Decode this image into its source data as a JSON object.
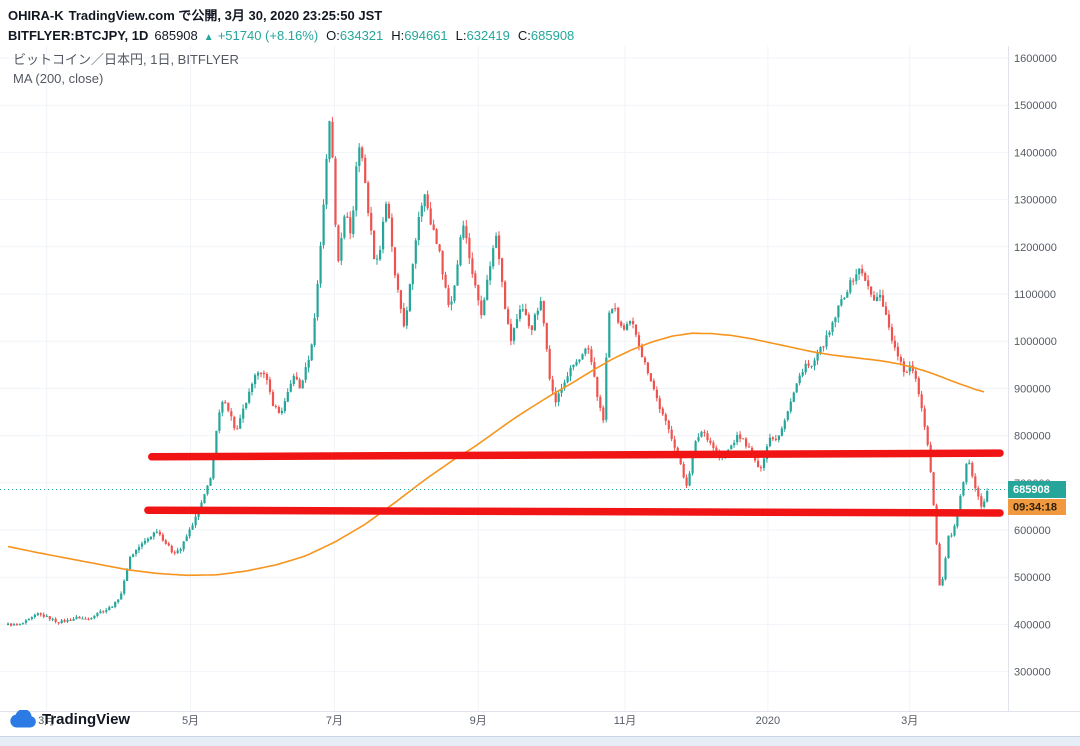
{
  "header": {
    "author": "OHIRA-K",
    "publish_info": "TradingView.com で公開, 3月 30, 2020 23:25:50 JST",
    "symbol": "BITFLYER:BTCJPY, 1D",
    "last": "685908",
    "arrow": "▲",
    "change": "+51740 (+8.16%)",
    "o_label": "O:",
    "o_value": "634321",
    "h_label": "H:",
    "h_value": "694661",
    "l_label": "L:",
    "l_value": "632419",
    "c_label": "C:",
    "c_value": "685908"
  },
  "legend": {
    "title": "ビットコイン／日本円, 1日, BITFLYER",
    "ma": "MA (200, close)"
  },
  "footer": {
    "brand": "TradingView"
  },
  "chart_data": {
    "type": "candlestick",
    "title": "ビットコイン／日本円 1日 BITFLYER",
    "symbol": "BITFLYER:BTCJPY",
    "interval": "1D",
    "legend_indicator": "MA (200, close)",
    "y_axis": {
      "min": 220000,
      "max": 1625000,
      "ticks": [
        300000,
        400000,
        500000,
        600000,
        700000,
        800000,
        900000,
        1000000,
        1100000,
        1200000,
        1300000,
        1400000,
        1500000,
        1600000
      ]
    },
    "x_ticks": [
      {
        "label": "3月",
        "t": 0.039
      },
      {
        "label": "5月",
        "t": 0.184
      },
      {
        "label": "7月",
        "t": 0.329
      },
      {
        "label": "9月",
        "t": 0.474
      },
      {
        "label": "11月",
        "t": 0.622
      },
      {
        "label": "2020",
        "t": 0.766
      },
      {
        "label": "3月",
        "t": 0.909
      }
    ],
    "ohlc": {
      "open": 634321,
      "high": 694661,
      "low": 632419,
      "close": 685908,
      "change": 51740,
      "change_pct": 8.16
    },
    "price_line": {
      "value": 685908,
      "label": "685908",
      "countdown": "09:34:18"
    },
    "red_lines": [
      {
        "t1": 0.145,
        "v1": 755000,
        "t2": 1.0,
        "v2": 763000
      },
      {
        "t1": 0.141,
        "v1": 642000,
        "t2": 1.0,
        "v2": 636000
      }
    ],
    "num_candles": 330,
    "close_anchors": [
      [
        0.0,
        400000
      ],
      [
        0.01,
        398000
      ],
      [
        0.02,
        408000
      ],
      [
        0.03,
        422000
      ],
      [
        0.04,
        415000
      ],
      [
        0.05,
        405000
      ],
      [
        0.06,
        408000
      ],
      [
        0.07,
        415000
      ],
      [
        0.08,
        410000
      ],
      [
        0.09,
        425000
      ],
      [
        0.1,
        432000
      ],
      [
        0.108,
        445000
      ],
      [
        0.115,
        470000
      ],
      [
        0.122,
        540000
      ],
      [
        0.13,
        560000
      ],
      [
        0.14,
        580000
      ],
      [
        0.15,
        600000
      ],
      [
        0.158,
        575000
      ],
      [
        0.166,
        552000
      ],
      [
        0.174,
        560000
      ],
      [
        0.182,
        595000
      ],
      [
        0.19,
        630000
      ],
      [
        0.198,
        672000
      ],
      [
        0.205,
        720000
      ],
      [
        0.212,
        840000
      ],
      [
        0.218,
        880000
      ],
      [
        0.224,
        845000
      ],
      [
        0.23,
        805000
      ],
      [
        0.238,
        860000
      ],
      [
        0.246,
        905000
      ],
      [
        0.253,
        945000
      ],
      [
        0.26,
        920000
      ],
      [
        0.267,
        868000
      ],
      [
        0.274,
        845000
      ],
      [
        0.281,
        880000
      ],
      [
        0.288,
        930000
      ],
      [
        0.294,
        900000
      ],
      [
        0.3,
        940000
      ],
      [
        0.306,
        990000
      ],
      [
        0.312,
        1120000
      ],
      [
        0.317,
        1260000
      ],
      [
        0.321,
        1390000
      ],
      [
        0.325,
        1485000
      ],
      [
        0.328,
        1340000
      ],
      [
        0.332,
        1160000
      ],
      [
        0.336,
        1225000
      ],
      [
        0.341,
        1280000
      ],
      [
        0.346,
        1215000
      ],
      [
        0.351,
        1370000
      ],
      [
        0.355,
        1430000
      ],
      [
        0.36,
        1330000
      ],
      [
        0.365,
        1245000
      ],
      [
        0.37,
        1165000
      ],
      [
        0.375,
        1195000
      ],
      [
        0.38,
        1295000
      ],
      [
        0.385,
        1245000
      ],
      [
        0.39,
        1135000
      ],
      [
        0.395,
        1080000
      ],
      [
        0.4,
        1025000
      ],
      [
        0.405,
        1115000
      ],
      [
        0.41,
        1200000
      ],
      [
        0.415,
        1285000
      ],
      [
        0.42,
        1310000
      ],
      [
        0.425,
        1255000
      ],
      [
        0.43,
        1230000
      ],
      [
        0.435,
        1185000
      ],
      [
        0.44,
        1125000
      ],
      [
        0.445,
        1065000
      ],
      [
        0.45,
        1120000
      ],
      [
        0.454,
        1180000
      ],
      [
        0.458,
        1265000
      ],
      [
        0.462,
        1215000
      ],
      [
        0.467,
        1155000
      ],
      [
        0.472,
        1105000
      ],
      [
        0.477,
        1062000
      ],
      [
        0.482,
        1115000
      ],
      [
        0.487,
        1175000
      ],
      [
        0.492,
        1225000
      ],
      [
        0.497,
        1150000
      ],
      [
        0.502,
        1055000
      ],
      [
        0.507,
        1002000
      ],
      [
        0.512,
        1040000
      ],
      [
        0.517,
        1078000
      ],
      [
        0.522,
        1052000
      ],
      [
        0.527,
        1022000
      ],
      [
        0.532,
        1058000
      ],
      [
        0.537,
        1080000
      ],
      [
        0.542,
        1010000
      ],
      [
        0.547,
        905000
      ],
      [
        0.552,
        872000
      ],
      [
        0.558,
        900000
      ],
      [
        0.564,
        928000
      ],
      [
        0.57,
        950000
      ],
      [
        0.577,
        962000
      ],
      [
        0.584,
        985000
      ],
      [
        0.59,
        940000
      ],
      [
        0.595,
        872000
      ],
      [
        0.6,
        832000
      ],
      [
        0.605,
        1052000
      ],
      [
        0.61,
        1078000
      ],
      [
        0.615,
        1042000
      ],
      [
        0.621,
        1022000
      ],
      [
        0.628,
        1042000
      ],
      [
        0.634,
        1012000
      ],
      [
        0.64,
        962000
      ],
      [
        0.646,
        932000
      ],
      [
        0.652,
        892000
      ],
      [
        0.658,
        852000
      ],
      [
        0.664,
        822000
      ],
      [
        0.67,
        792000
      ],
      [
        0.676,
        752000
      ],
      [
        0.681,
        712000
      ],
      [
        0.685,
        692000
      ],
      [
        0.689,
        755000
      ],
      [
        0.694,
        792000
      ],
      [
        0.7,
        812000
      ],
      [
        0.706,
        792000
      ],
      [
        0.712,
        772000
      ],
      [
        0.718,
        752000
      ],
      [
        0.724,
        762000
      ],
      [
        0.73,
        782000
      ],
      [
        0.736,
        800000
      ],
      [
        0.742,
        788000
      ],
      [
        0.748,
        768000
      ],
      [
        0.753,
        748000
      ],
      [
        0.757,
        722000
      ],
      [
        0.761,
        748000
      ],
      [
        0.765,
        778000
      ],
      [
        0.769,
        800000
      ],
      [
        0.774,
        792000
      ],
      [
        0.779,
        812000
      ],
      [
        0.784,
        842000
      ],
      [
        0.789,
        872000
      ],
      [
        0.794,
        902000
      ],
      [
        0.799,
        932000
      ],
      [
        0.804,
        952000
      ],
      [
        0.809,
        942000
      ],
      [
        0.814,
        962000
      ],
      [
        0.819,
        982000
      ],
      [
        0.824,
        1002000
      ],
      [
        0.829,
        1022000
      ],
      [
        0.834,
        1052000
      ],
      [
        0.839,
        1082000
      ],
      [
        0.844,
        1102000
      ],
      [
        0.849,
        1122000
      ],
      [
        0.854,
        1142000
      ],
      [
        0.859,
        1152000
      ],
      [
        0.864,
        1132000
      ],
      [
        0.869,
        1100000
      ],
      [
        0.874,
        1082000
      ],
      [
        0.879,
        1102000
      ],
      [
        0.884,
        1062000
      ],
      [
        0.889,
        1022000
      ],
      [
        0.894,
        982000
      ],
      [
        0.899,
        962000
      ],
      [
        0.904,
        922000
      ],
      [
        0.909,
        952000
      ],
      [
        0.914,
        932000
      ],
      [
        0.919,
        882000
      ],
      [
        0.924,
        822000
      ],
      [
        0.929,
        752000
      ],
      [
        0.933,
        652000
      ],
      [
        0.937,
        542000
      ],
      [
        0.94,
        455000
      ],
      [
        0.943,
        512000
      ],
      [
        0.946,
        558000
      ],
      [
        0.949,
        600000
      ],
      [
        0.952,
        578000
      ],
      [
        0.955,
        618000
      ],
      [
        0.958,
        648000
      ],
      [
        0.961,
        678000
      ],
      [
        0.964,
        718000
      ],
      [
        0.967,
        758000
      ],
      [
        0.97,
        742000
      ],
      [
        0.973,
        702000
      ],
      [
        0.976,
        682000
      ],
      [
        0.979,
        662000
      ],
      [
        0.982,
        642000
      ],
      [
        0.987,
        686000
      ]
    ],
    "ma200_anchors": [
      [
        0.0,
        565000
      ],
      [
        0.03,
        552000
      ],
      [
        0.06,
        540000
      ],
      [
        0.09,
        528000
      ],
      [
        0.12,
        516000
      ],
      [
        0.15,
        508000
      ],
      [
        0.18,
        504000
      ],
      [
        0.21,
        505000
      ],
      [
        0.24,
        513000
      ],
      [
        0.27,
        526000
      ],
      [
        0.3,
        545000
      ],
      [
        0.33,
        575000
      ],
      [
        0.36,
        612000
      ],
      [
        0.39,
        658000
      ],
      [
        0.42,
        706000
      ],
      [
        0.45,
        750000
      ],
      [
        0.47,
        776000
      ],
      [
        0.49,
        806000
      ],
      [
        0.51,
        836000
      ],
      [
        0.53,
        863000
      ],
      [
        0.55,
        889000
      ],
      [
        0.57,
        913000
      ],
      [
        0.59,
        939000
      ],
      [
        0.61,
        963000
      ],
      [
        0.63,
        983000
      ],
      [
        0.65,
        999000
      ],
      [
        0.67,
        1011000
      ],
      [
        0.69,
        1017000
      ],
      [
        0.71,
        1016000
      ],
      [
        0.73,
        1012000
      ],
      [
        0.75,
        1005000
      ],
      [
        0.77,
        996000
      ],
      [
        0.79,
        987000
      ],
      [
        0.81,
        978000
      ],
      [
        0.83,
        971000
      ],
      [
        0.85,
        966000
      ],
      [
        0.87,
        961000
      ],
      [
        0.885,
        957000
      ],
      [
        0.9,
        951000
      ],
      [
        0.915,
        943000
      ],
      [
        0.93,
        933000
      ],
      [
        0.945,
        921000
      ],
      [
        0.96,
        909000
      ],
      [
        0.975,
        898000
      ],
      [
        0.985,
        892000
      ]
    ],
    "colors": {
      "up": "#26a69a",
      "down": "#ef5350",
      "ma": "#f7941d",
      "red_line": "#f01414",
      "price_flag": "#26a69a",
      "countdown_flag": "#f0993e",
      "grid": "#f0f3f8",
      "axis_text": "#555b65",
      "header_text": "#131722"
    }
  }
}
